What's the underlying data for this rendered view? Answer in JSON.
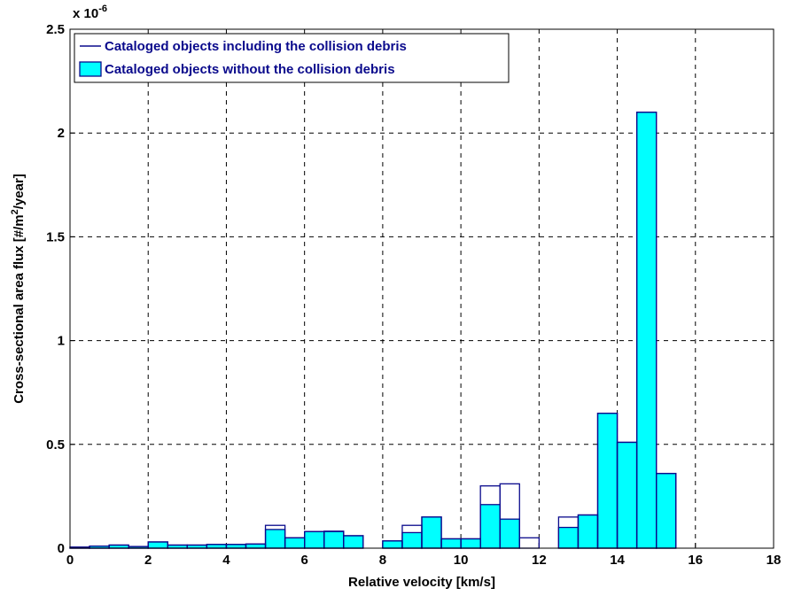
{
  "chart_data": {
    "type": "histogram",
    "xlabel": "Relative velocity [km/s]",
    "ylabel_parts": [
      "Cross-sectional area flux [#/m",
      "2",
      "/year]"
    ],
    "y_multiplier": "x 10",
    "y_multiplier_exp": "-6",
    "bins": [
      0,
      0.5,
      1,
      1.5,
      2,
      2.5,
      3,
      3.5,
      4,
      4.5,
      5,
      5.5,
      6,
      6.5,
      7,
      7.5,
      8,
      8.5,
      9,
      9.5,
      10,
      10.5,
      11,
      11.5,
      12,
      12.5,
      13,
      13.5,
      14,
      14.5,
      15,
      15.5,
      16,
      16.5,
      17,
      17.5,
      18
    ],
    "series": [
      {
        "name": "Cataloged objects including the collision debris",
        "color": "#0a0a8c",
        "style": "outline",
        "values": [
          0.005,
          0.01,
          0.015,
          0.008,
          0.03,
          0.015,
          0.015,
          0.018,
          0.018,
          0.02,
          0.11,
          0.05,
          0.08,
          0.082,
          0.06,
          0,
          0.035,
          0.11,
          0.15,
          0.045,
          0.045,
          0.3,
          0.31,
          0.05,
          0,
          0.15,
          0.16,
          0.65,
          0.51,
          2.1,
          0.36,
          0,
          0,
          0,
          0,
          0
        ]
      },
      {
        "name": "Cataloged objects without the collision debris",
        "color": "#00ffff",
        "edge_color": "#0a0a8c",
        "style": "filled",
        "values": [
          0.005,
          0.01,
          0.015,
          0.008,
          0.03,
          0.015,
          0.015,
          0.018,
          0.018,
          0.02,
          0.09,
          0.05,
          0.08,
          0.08,
          0.06,
          0,
          0.035,
          0.075,
          0.15,
          0.045,
          0.045,
          0.21,
          0.14,
          0,
          0,
          0.1,
          0.16,
          0.65,
          0.51,
          2.1,
          0.36,
          0,
          0,
          0,
          0,
          0
        ]
      }
    ],
    "xlim": [
      0,
      18
    ],
    "xticks": [
      0,
      2,
      4,
      6,
      8,
      10,
      12,
      14,
      16,
      18
    ],
    "ylim": [
      0,
      2.5
    ],
    "yticks": [
      0,
      0.5,
      1,
      1.5,
      2,
      2.5
    ],
    "grid": true,
    "legend": "upper-left"
  }
}
